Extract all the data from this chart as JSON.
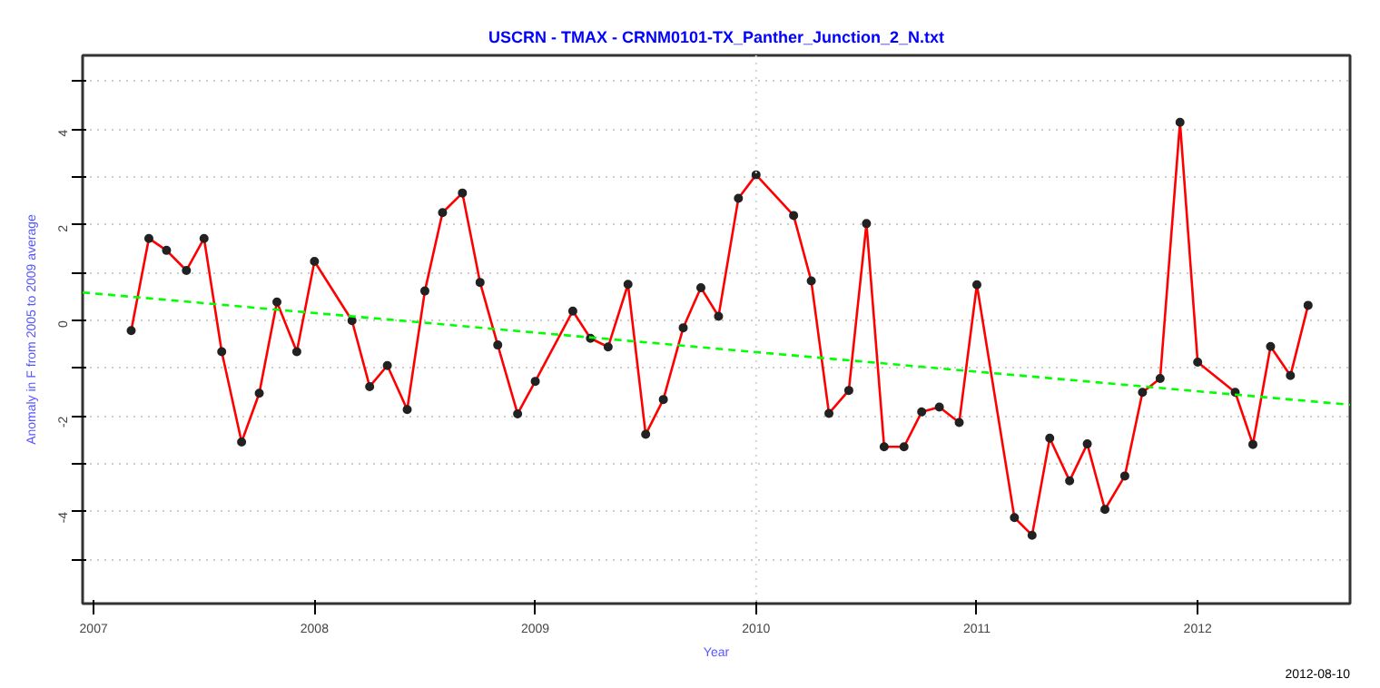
{
  "chart_data": {
    "type": "line",
    "title": "USCRN - TMAX - CRNM0101-TX_Panther_Junction_2_N.txt",
    "xlabel": "Year",
    "ylabel": "Anomaly in F from 2005 to 2009 average",
    "annotations": [
      "2012-08-10"
    ],
    "xlim": [
      2006.95,
      2012.69
    ],
    "xticks": [
      2007,
      2008,
      2009,
      2010,
      2011,
      2012
    ],
    "ylim": [
      -5.92,
      5.55
    ],
    "yticks": [
      {
        "value": -5,
        "label": null
      },
      -4,
      {
        "value": -3,
        "label": null
      },
      -2,
      {
        "value": -1,
        "label": null
      },
      0,
      {
        "value": 1,
        "label": null
      },
      2,
      {
        "value": 3,
        "label": null
      },
      4,
      {
        "value": 5,
        "label": null
      }
    ],
    "grid": "y",
    "ref_lines": [
      {
        "axis": "x",
        "value": 2010,
        "color": "#d3d3d3",
        "line_style": "dotted"
      }
    ],
    "series": [
      {
        "color": "#ff0000",
        "marker": "circle",
        "line_style": "solid",
        "x": [
          2007.17,
          2007.25,
          2007.33,
          2007.42,
          2007.5,
          2007.58,
          2007.67,
          2007.75,
          2007.83,
          2007.92,
          2008.0,
          2008.17,
          2008.25,
          2008.33,
          2008.42,
          2008.5,
          2008.58,
          2008.67,
          2008.75,
          2008.83,
          2008.92,
          2009.0,
          2009.17,
          2009.25,
          2009.33,
          2009.42,
          2009.5,
          2009.58,
          2009.67,
          2009.75,
          2009.83,
          2009.92,
          2010.0,
          2010.17,
          2010.25,
          2010.33,
          2010.42,
          2010.5,
          2010.58,
          2010.67,
          2010.75,
          2010.83,
          2010.92,
          2011.0,
          2011.17,
          2011.25,
          2011.33,
          2011.42,
          2011.5,
          2011.58,
          2011.67,
          2011.75,
          2011.83,
          2011.92,
          2012.0,
          2012.17,
          2012.25,
          2012.33,
          2012.42,
          2012.5
        ],
        "values": [
          -0.21,
          1.72,
          1.47,
          1.05,
          1.72,
          -0.65,
          -2.54,
          -1.52,
          0.39,
          -0.65,
          1.24,
          0.0,
          -1.38,
          -0.94,
          -1.86,
          0.62,
          2.26,
          2.67,
          0.8,
          -0.51,
          -1.95,
          -1.27,
          0.2,
          -0.37,
          -0.55,
          0.76,
          -2.38,
          -1.65,
          -0.15,
          0.69,
          0.09,
          2.56,
          3.05,
          2.2,
          0.83,
          -1.94,
          -1.46,
          2.03,
          -2.64,
          -2.64,
          -1.91,
          -1.81,
          -2.13,
          0.75,
          -4.12,
          -4.49,
          -2.46,
          -3.35,
          -2.58,
          -3.95,
          -3.25,
          -1.5,
          -1.21,
          4.15,
          -0.87,
          -1.5,
          -2.59,
          -0.54,
          -1.15,
          0.32
        ]
      },
      {
        "color": "#00ff00",
        "marker": "none",
        "line_style": "dashed",
        "x": [
          2006.95,
          2012.69
        ],
        "values": [
          0.59,
          -1.76
        ]
      }
    ]
  }
}
